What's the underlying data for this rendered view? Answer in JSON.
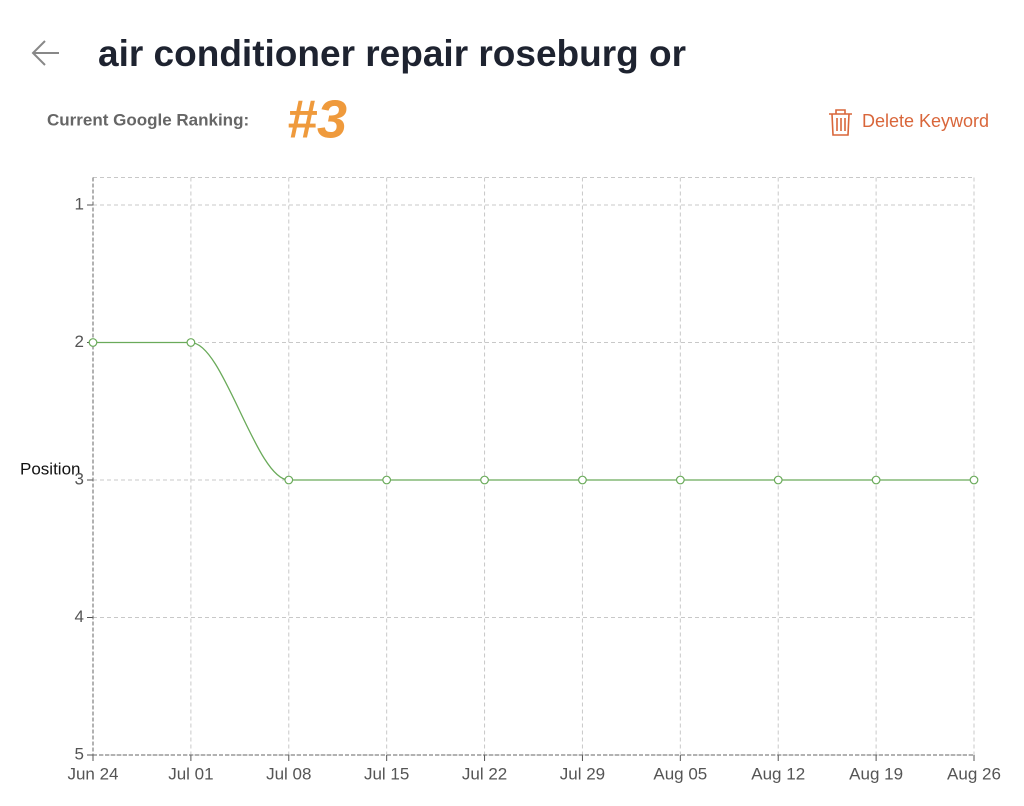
{
  "header": {
    "title": "air conditioner repair roseburg or",
    "ranking_label": "Current Google Ranking:",
    "ranking": "#3",
    "delete_button": "Delete Keyword"
  },
  "chart_data": {
    "type": "line",
    "y_label": "Position",
    "categories": [
      "Jun 24",
      "Jul 01",
      "Jul 08",
      "Jul 15",
      "Jul 22",
      "Jul 29",
      "Aug 05",
      "Aug 12",
      "Aug 19",
      "Aug 26"
    ],
    "values": [
      2,
      2,
      3,
      3,
      3,
      3,
      3,
      3,
      3,
      3
    ],
    "color": "#6aaa5a",
    "ylim": [
      0.8,
      5
    ],
    "yticks": [
      1,
      2,
      3,
      4,
      5
    ],
    "y_inverted": true,
    "grid": true,
    "smooth": true
  }
}
